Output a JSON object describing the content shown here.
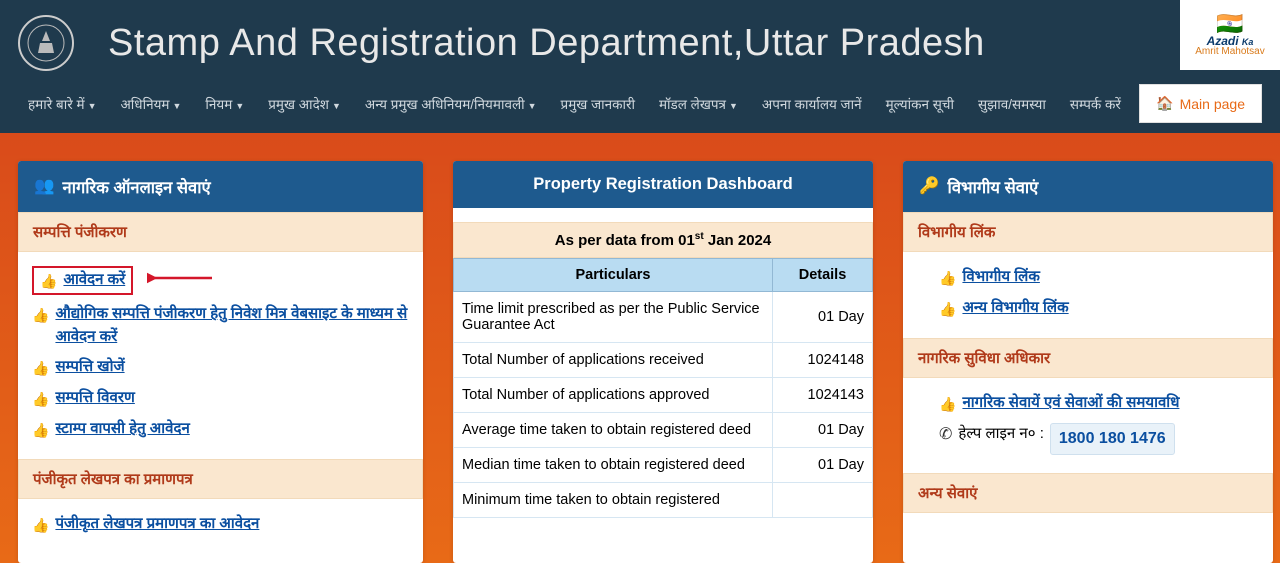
{
  "header": {
    "title": "Stamp And Registration Department,Uttar Pradesh",
    "azadi_line1": "Azadi",
    "azadi_line2": "Ka",
    "azadi_line3": "Amrit Mahotsav"
  },
  "nav": {
    "items": [
      {
        "label": "हमारे बारे में",
        "dropdown": true
      },
      {
        "label": "अधिनियम",
        "dropdown": true
      },
      {
        "label": "नियम",
        "dropdown": true
      },
      {
        "label": "प्रमुख आदेश",
        "dropdown": true
      },
      {
        "label": "अन्य प्रमुख अधिनियम/नियमावली",
        "dropdown": true
      },
      {
        "label": "प्रमुख जानकारी",
        "dropdown": false
      },
      {
        "label": "मॉडल लेखपत्र",
        "dropdown": true
      },
      {
        "label": "अपना कार्यालय जानें",
        "dropdown": false
      },
      {
        "label": "मूल्यांकन सूची",
        "dropdown": false
      },
      {
        "label": "सुझाव/समस्या",
        "dropdown": false
      },
      {
        "label": "सम्पर्क करें",
        "dropdown": false
      }
    ],
    "main_page": "Main page"
  },
  "left_panel": {
    "title": "नागरिक ऑनलाइन सेवाएं",
    "section1": "सम्पत्ति पंजीकरण",
    "links1": [
      "आवेदन करें",
      "औद्योगिक सम्पत्ति पंजीकरण हेतु निवेश मित्र वेबसाइट के माध्यम से आवेदन करें",
      "सम्पत्ति खोजें",
      "सम्पत्ति विवरण",
      "स्टाम्प वापसी हेतु आवेदन"
    ],
    "section2": "पंजीकृत लेखपत्र का प्रमाणपत्र",
    "links2": [
      "पंजीकृत लेखपत्र प्रमाणपत्र का आवेदन"
    ]
  },
  "mid_panel": {
    "title": "Property Registration Dashboard",
    "caption_prefix": "As per data from 01",
    "caption_sup": "st",
    "caption_suffix": " Jan 2024",
    "col1": "Particulars",
    "col2": "Details",
    "rows": [
      {
        "p": "Time limit prescribed as per the Public Service Guarantee Act",
        "d": "01 Day"
      },
      {
        "p": "Total Number of applications received",
        "d": "1024148"
      },
      {
        "p": "Total Number of applications approved",
        "d": "1024143"
      },
      {
        "p": "Average time taken to obtain registered deed",
        "d": "01 Day"
      },
      {
        "p": "Median time taken to obtain registered deed",
        "d": "01 Day"
      },
      {
        "p": "Minimum time taken to obtain registered",
        "d": ""
      }
    ]
  },
  "right_panel": {
    "title": "विभागीय सेवाएं",
    "section1": "विभागीय लिंक",
    "links1": [
      "विभागीय लिंक",
      "अन्य विभागीय लिंक"
    ],
    "section2": "नागरिक सुविधा अधिकार",
    "link2": "नागरिक सेवायें एवं सेवाओं की समयावधि",
    "help_label": "हेल्प लाइन न० :",
    "help_num": "1800 180 1476",
    "section3": "अन्य सेवाएं"
  }
}
